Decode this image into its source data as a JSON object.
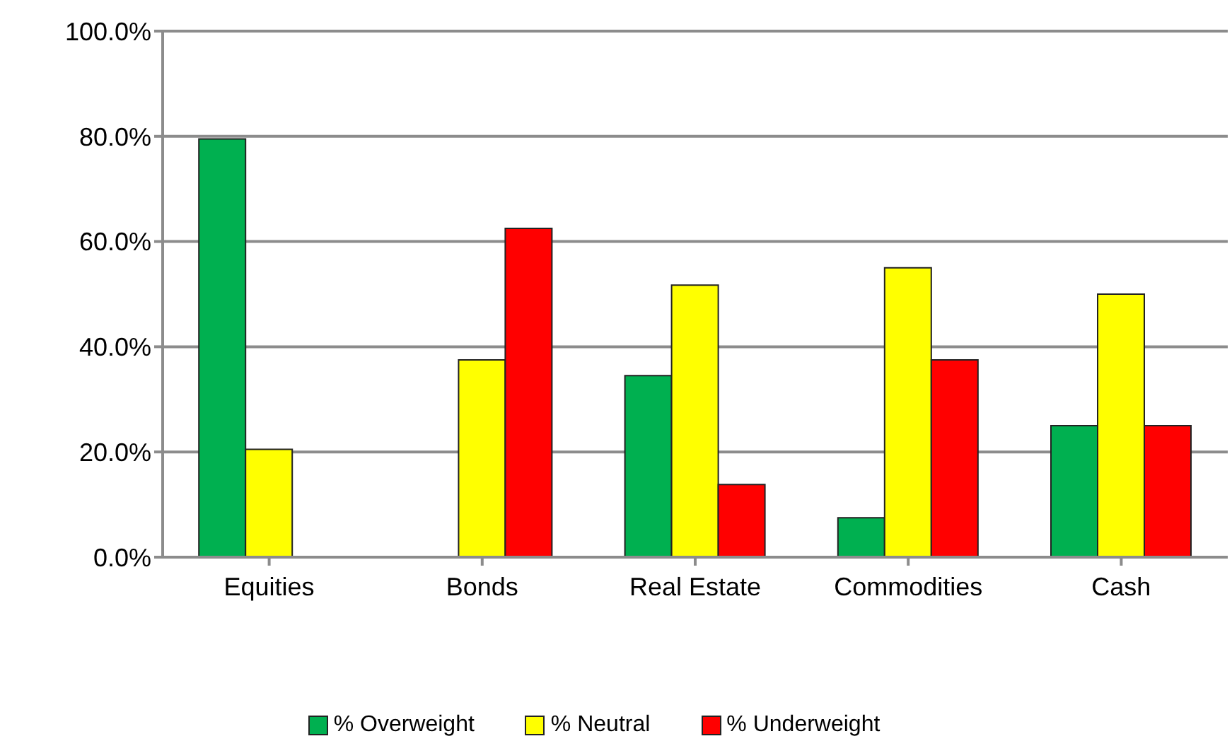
{
  "chart_data": {
    "type": "bar",
    "categories": [
      "Equities",
      "Bonds",
      "Real Estate",
      "Commodities",
      "Cash"
    ],
    "series": [
      {
        "name": "% Overweight",
        "color": "#00b050",
        "values": [
          79.5,
          0,
          34.5,
          7.5,
          25
        ]
      },
      {
        "name": "% Neutral",
        "color": "#ffff00",
        "values": [
          20.5,
          37.5,
          51.7,
          55,
          50
        ]
      },
      {
        "name": "% Underweight",
        "color": "#ff0000",
        "values": [
          0,
          62.5,
          13.8,
          37.5,
          25
        ]
      }
    ],
    "ylim": [
      0,
      100
    ],
    "yticks": [
      {
        "value": 0,
        "label": "0.0%"
      },
      {
        "value": 20,
        "label": "20.0%"
      },
      {
        "value": 40,
        "label": "40.0%"
      },
      {
        "value": 60,
        "label": "60.0%"
      },
      {
        "value": 80,
        "label": "80.0%"
      },
      {
        "value": 100,
        "label": "100.0%"
      }
    ],
    "grid": "y",
    "legend": "bottom"
  }
}
